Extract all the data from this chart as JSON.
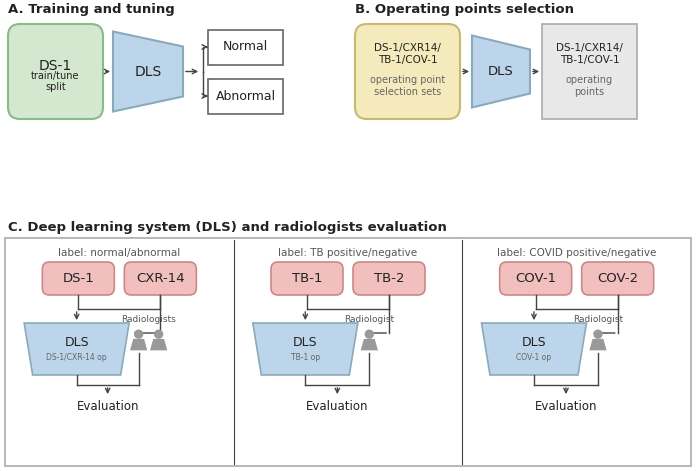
{
  "bg_color": "#ffffff",
  "title_A": "A. Training and tuning",
  "title_B": "B. Operating points selection",
  "title_C": "C. Deep learning system (DLS) and radiologists evaluation",
  "green_box_color": "#d4e8d0",
  "green_box_edge": "#88bb88",
  "yellow_box_color": "#f5eabc",
  "yellow_box_edge": "#c8b870",
  "gray_box_color": "#e8e8e8",
  "gray_box_edge": "#aaaaaa",
  "blue_trap_color": "#bdd5ea",
  "blue_trap_edge": "#8aaabb",
  "pink_box_color": "#f2bfbf",
  "pink_box_edge": "#cc8888",
  "white_box_edge": "#666666",
  "section_c_edge": "#aaaaaa",
  "divider_color": "#cccccc",
  "arrow_color": "#444444",
  "text_dark": "#222222",
  "text_gray": "#666666",
  "person_color": "#999999"
}
